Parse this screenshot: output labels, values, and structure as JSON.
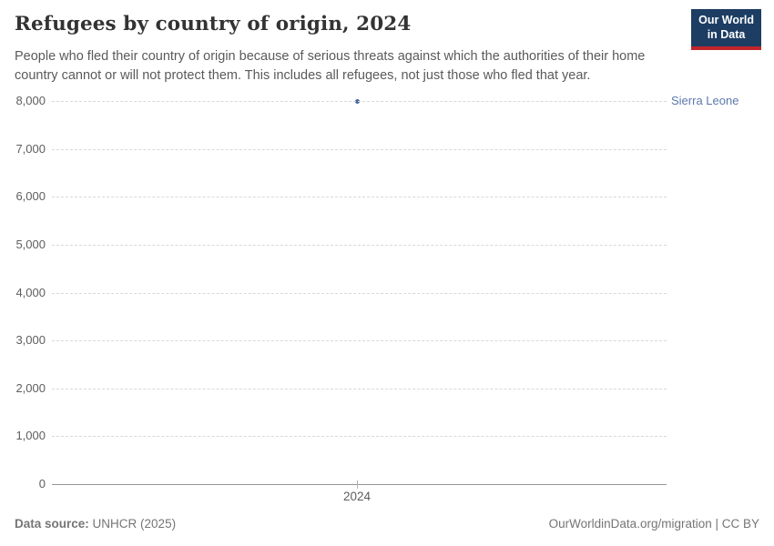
{
  "header": {
    "title": "Refugees by country of origin, 2024",
    "subtitle": "People who fled their country of origin because of serious threats against which the authorities of their home country cannot or will not protect them. This includes all refugees, not just those who fled that year."
  },
  "logo": {
    "line1": "Our World",
    "line2": "in Data",
    "background_color": "#1d3d63",
    "underline_color": "#c0252c"
  },
  "chart_data": {
    "type": "scatter",
    "title": "Refugees by country of origin, 2024",
    "x": [
      2024
    ],
    "xtick_labels": [
      "2024"
    ],
    "series": [
      {
        "name": "Sierra Leone",
        "values": [
          8000
        ]
      }
    ],
    "xlabel": "",
    "ylabel": "",
    "ylim": [
      0,
      8000
    ],
    "yticks": [
      0,
      1000,
      2000,
      3000,
      4000,
      5000,
      6000,
      7000,
      8000
    ],
    "ytick_labels": [
      "0",
      "1,000",
      "2,000",
      "3,000",
      "4,000",
      "5,000",
      "6,000",
      "7,000",
      "8,000"
    ],
    "grid": "horizontal-dashed",
    "legend_position": "right-inline-label",
    "point_color": "#4665a0",
    "entity_label_color": "#5b79ad"
  },
  "footer": {
    "source_label": "Data source:",
    "source_value": "UNHCR (2025)",
    "right_text": "OurWorldinData.org/migration | CC BY"
  }
}
